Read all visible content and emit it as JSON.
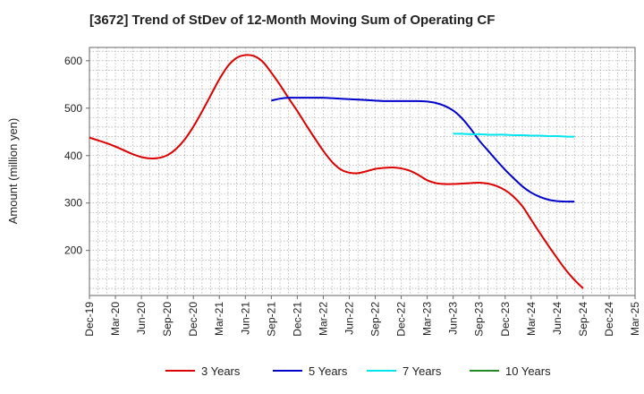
{
  "chart_data": {
    "type": "line",
    "title": "[3672]  Trend of StDev of 12-Month Moving Sum of Operating CF",
    "ylabel": "Amount (million yen)",
    "xlabel": "",
    "ylim": [
      105,
      628
    ],
    "yticks": [
      200,
      300,
      400,
      500,
      600
    ],
    "xticks": [
      "Dec-19",
      "Mar-20",
      "Jun-20",
      "Sep-20",
      "Dec-20",
      "Mar-21",
      "Jun-21",
      "Sep-21",
      "Dec-21",
      "Mar-22",
      "Jun-22",
      "Sep-22",
      "Dec-22",
      "Mar-23",
      "Jun-23",
      "Sep-23",
      "Dec-23",
      "Mar-24",
      "Jun-24",
      "Sep-24",
      "Dec-24",
      "Mar-25"
    ],
    "grid": true,
    "legend_position": "bottom",
    "series": [
      {
        "name": "3 Years",
        "color": "#dd0000",
        "points": [
          [
            "Dec-19",
            438
          ],
          [
            "Jan-20",
            432
          ],
          [
            "Feb-20",
            426
          ],
          [
            "Mar-20",
            419
          ],
          [
            "Apr-20",
            411
          ],
          [
            "May-20",
            403
          ],
          [
            "Jun-20",
            397
          ],
          [
            "Jul-20",
            394
          ],
          [
            "Aug-20",
            395
          ],
          [
            "Sep-20",
            401
          ],
          [
            "Oct-20",
            414
          ],
          [
            "Nov-20",
            434
          ],
          [
            "Dec-20",
            461
          ],
          [
            "Jan-21",
            493
          ],
          [
            "Feb-21",
            527
          ],
          [
            "Mar-21",
            561
          ],
          [
            "Apr-21",
            589
          ],
          [
            "May-21",
            606
          ],
          [
            "Jun-21",
            612
          ],
          [
            "Jul-21",
            610
          ],
          [
            "Aug-21",
            598
          ],
          [
            "Sep-21",
            575
          ],
          [
            "Oct-21",
            549
          ],
          [
            "Nov-21",
            521
          ],
          [
            "Dec-21",
            494
          ],
          [
            "Jan-22",
            465
          ],
          [
            "Feb-22",
            437
          ],
          [
            "Mar-22",
            410
          ],
          [
            "Apr-22",
            387
          ],
          [
            "May-22",
            371
          ],
          [
            "Jun-22",
            364
          ],
          [
            "Jul-22",
            363
          ],
          [
            "Aug-22",
            367
          ],
          [
            "Sep-22",
            372
          ],
          [
            "Oct-22",
            374
          ],
          [
            "Nov-22",
            375
          ],
          [
            "Dec-22",
            373
          ],
          [
            "Jan-23",
            368
          ],
          [
            "Feb-23",
            359
          ],
          [
            "Mar-23",
            348
          ],
          [
            "Apr-23",
            342
          ],
          [
            "May-23",
            340
          ],
          [
            "Jun-23",
            340
          ],
          [
            "Jul-23",
            341
          ],
          [
            "Aug-23",
            342
          ],
          [
            "Sep-23",
            343
          ],
          [
            "Oct-23",
            341
          ],
          [
            "Nov-23",
            336
          ],
          [
            "Dec-23",
            327
          ],
          [
            "Jan-24",
            313
          ],
          [
            "Feb-24",
            293
          ],
          [
            "Mar-24",
            265
          ],
          [
            "Apr-24",
            237
          ],
          [
            "May-24",
            210
          ],
          [
            "Jun-24",
            184
          ],
          [
            "Jul-24",
            159
          ],
          [
            "Aug-24",
            138
          ],
          [
            "Sep-24",
            120
          ]
        ]
      },
      {
        "name": "5 Years",
        "color": "#0000cc",
        "points": [
          [
            "Sep-21",
            516
          ],
          [
            "Oct-21",
            520
          ],
          [
            "Nov-21",
            522
          ],
          [
            "Dec-21",
            522
          ],
          [
            "Jan-22",
            522
          ],
          [
            "Feb-22",
            522
          ],
          [
            "Mar-22",
            522
          ],
          [
            "Apr-22",
            521
          ],
          [
            "May-22",
            520
          ],
          [
            "Jun-22",
            519
          ],
          [
            "Jul-22",
            518
          ],
          [
            "Aug-22",
            517
          ],
          [
            "Sep-22",
            516
          ],
          [
            "Oct-22",
            515
          ],
          [
            "Nov-22",
            515
          ],
          [
            "Dec-22",
            515
          ],
          [
            "Jan-23",
            515
          ],
          [
            "Feb-23",
            515
          ],
          [
            "Mar-23",
            514
          ],
          [
            "Apr-23",
            511
          ],
          [
            "May-23",
            505
          ],
          [
            "Jun-23",
            495
          ],
          [
            "Jul-23",
            479
          ],
          [
            "Aug-23",
            457
          ],
          [
            "Sep-23",
            432
          ],
          [
            "Oct-23",
            411
          ],
          [
            "Nov-23",
            390
          ],
          [
            "Dec-23",
            370
          ],
          [
            "Jan-24",
            352
          ],
          [
            "Feb-24",
            335
          ],
          [
            "Mar-24",
            322
          ],
          [
            "Apr-24",
            313
          ],
          [
            "May-24",
            307
          ],
          [
            "Jun-24",
            304
          ],
          [
            "Jul-24",
            303
          ],
          [
            "Aug-24",
            303
          ]
        ]
      },
      {
        "name": "7 Years",
        "color": "#00e5ee",
        "points": [
          [
            "Jun-23",
            446
          ],
          [
            "Jul-23",
            446
          ],
          [
            "Aug-23",
            445
          ],
          [
            "Sep-23",
            445
          ],
          [
            "Oct-23",
            444
          ],
          [
            "Nov-23",
            444
          ],
          [
            "Dec-23",
            444
          ],
          [
            "Jan-24",
            443
          ],
          [
            "Feb-24",
            443
          ],
          [
            "Mar-24",
            442
          ],
          [
            "Apr-24",
            442
          ],
          [
            "May-24",
            441
          ],
          [
            "Jun-24",
            441
          ],
          [
            "Jul-24",
            440
          ],
          [
            "Aug-24",
            440
          ]
        ]
      },
      {
        "name": "10 Years",
        "color": "#228b22",
        "points": []
      }
    ]
  }
}
